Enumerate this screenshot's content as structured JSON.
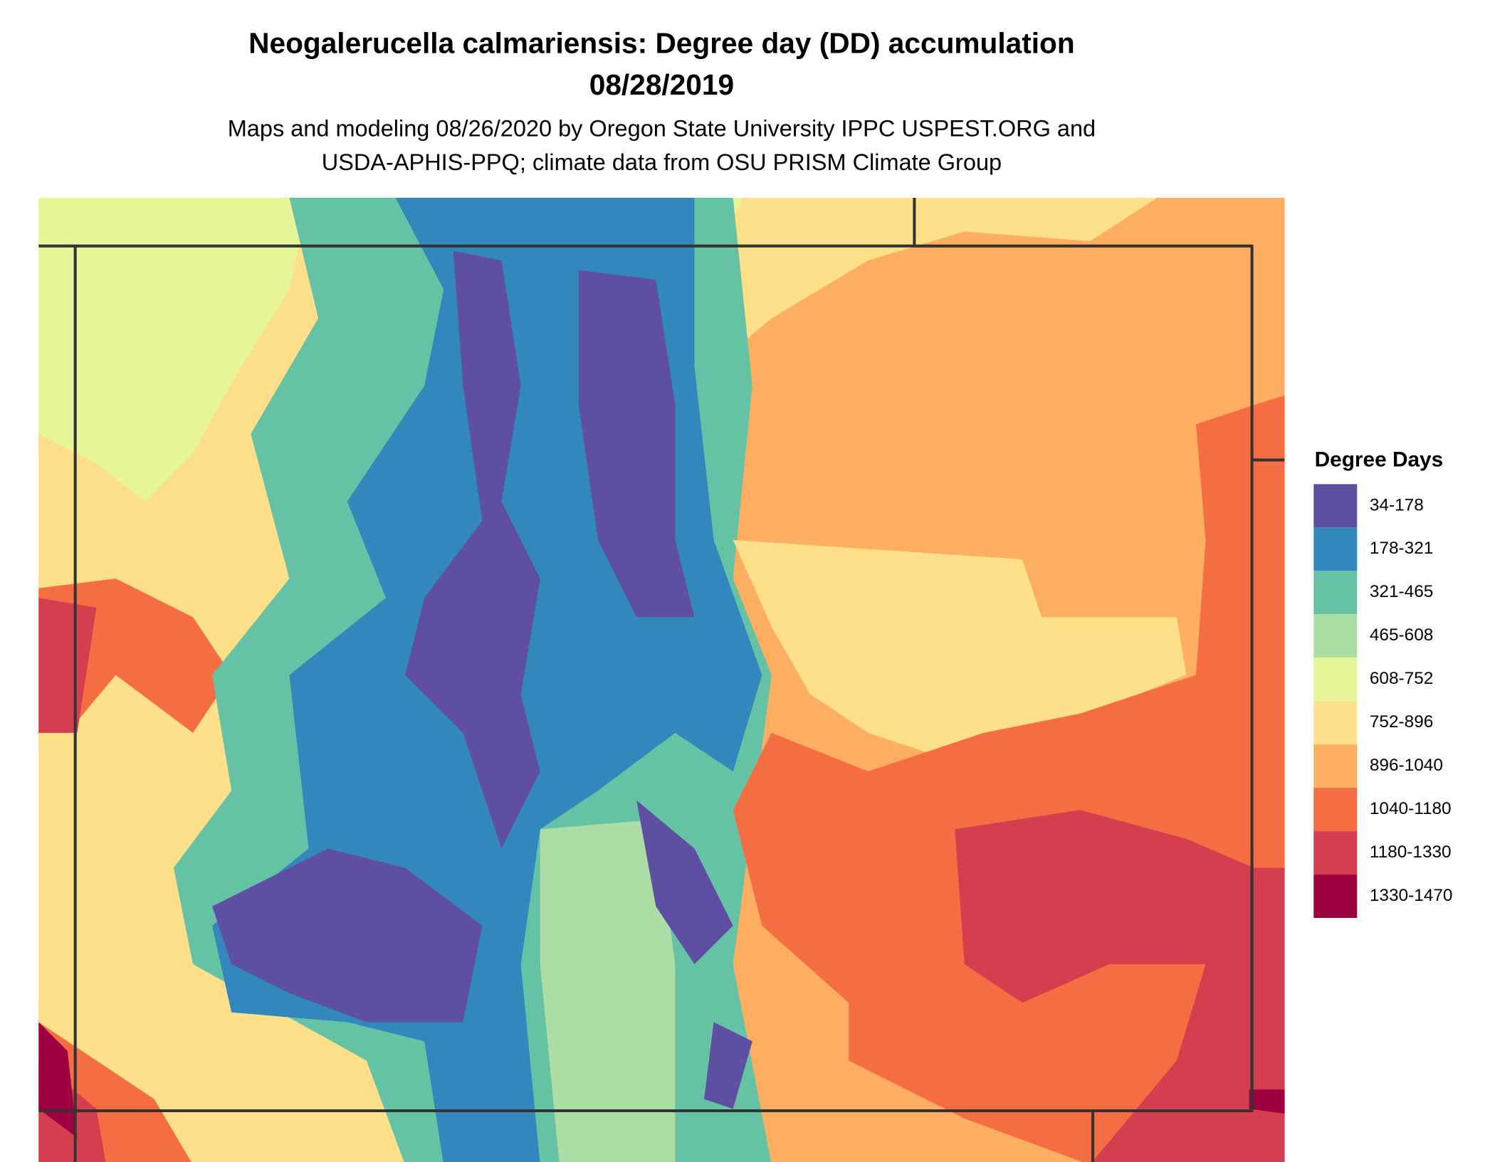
{
  "title": [
    "Neogalerucella calmariensis: Degree day (DD) accumulation",
    "08/28/2019"
  ],
  "subtitle": [
    "Maps and modeling 08/26/2020 by Oregon State University IPPC USPEST.ORG and",
    "USDA-APHIS-PPQ; climate data from OSU PRISM Climate Group"
  ],
  "legend": {
    "title": "Degree Days",
    "items": [
      {
        "label": "34-178",
        "color": "#5e4fa2"
      },
      {
        "label": "178-321",
        "color": "#3288bd"
      },
      {
        "label": "321-465",
        "color": "#66c2a5"
      },
      {
        "label": "465-608",
        "color": "#abdda4"
      },
      {
        "label": "608-752",
        "color": "#e6f598"
      },
      {
        "label": "752-896",
        "color": "#fee08b"
      },
      {
        "label": "896-1040",
        "color": "#fdae61"
      },
      {
        "label": "1040-1180",
        "color": "#f46d43"
      },
      {
        "label": "1180-1330",
        "color": "#d53e4f"
      },
      {
        "label": "1330-1470",
        "color": "#9e0142"
      }
    ]
  }
}
